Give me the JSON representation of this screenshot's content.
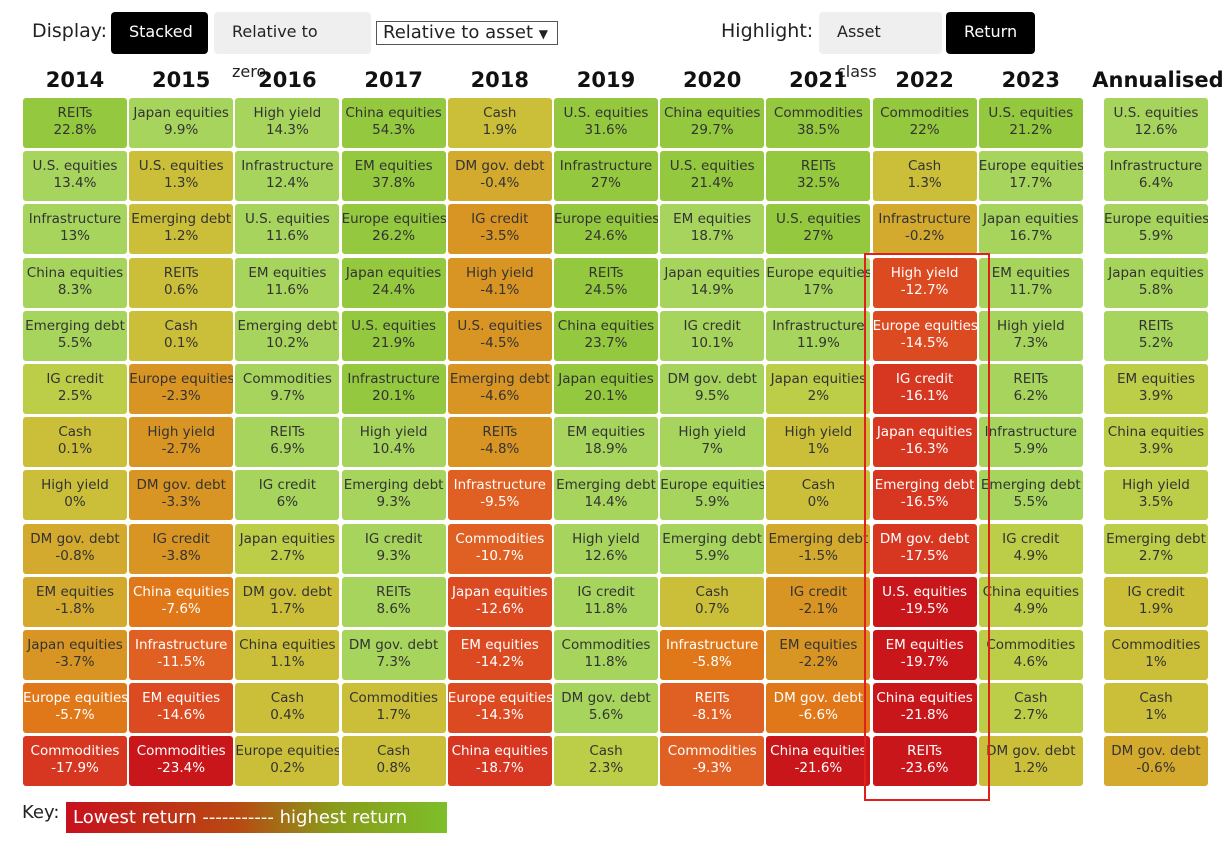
{
  "toolbar": {
    "display_label": "Display:",
    "stacked": "Stacked",
    "relative_zero": "Relative to zero",
    "relative_asset": "Relative to asset",
    "highlight_label": "Highlight:",
    "asset_class": "Asset class",
    "return": "Return"
  },
  "key": {
    "label": "Key:",
    "text": "Lowest return ----------- highest return"
  },
  "columns": [
    {
      "year": "2014",
      "cells": [
        [
          "REITs",
          "22.8%"
        ],
        [
          "U.S. equities",
          "13.4%"
        ],
        [
          "Infrastructure",
          "13%"
        ],
        [
          "China equities",
          "8.3%"
        ],
        [
          "Emerging debt",
          "5.5%"
        ],
        [
          "IG credit",
          "2.5%"
        ],
        [
          "Cash",
          "0.1%"
        ],
        [
          "High yield",
          "0%"
        ],
        [
          "DM gov. debt",
          "-0.8%"
        ],
        [
          "EM equities",
          "-1.8%"
        ],
        [
          "Japan equities",
          "-3.7%"
        ],
        [
          "Europe equities",
          "-5.7%"
        ],
        [
          "Commodities",
          "-17.9%"
        ]
      ]
    },
    {
      "year": "2015",
      "cells": [
        [
          "Japan equities",
          "9.9%"
        ],
        [
          "U.S. equities",
          "1.3%"
        ],
        [
          "Emerging debt",
          "1.2%"
        ],
        [
          "REITs",
          "0.6%"
        ],
        [
          "Cash",
          "0.1%"
        ],
        [
          "Europe equities",
          "-2.3%"
        ],
        [
          "High yield",
          "-2.7%"
        ],
        [
          "DM gov. debt",
          "-3.3%"
        ],
        [
          "IG credit",
          "-3.8%"
        ],
        [
          "China equities",
          "-7.6%"
        ],
        [
          "Infrastructure",
          "-11.5%"
        ],
        [
          "EM equities",
          "-14.6%"
        ],
        [
          "Commodities",
          "-23.4%"
        ]
      ]
    },
    {
      "year": "2016",
      "cells": [
        [
          "High yield",
          "14.3%"
        ],
        [
          "Infrastructure",
          "12.4%"
        ],
        [
          "U.S. equities",
          "11.6%"
        ],
        [
          "EM equities",
          "11.6%"
        ],
        [
          "Emerging debt",
          "10.2%"
        ],
        [
          "Commodities",
          "9.7%"
        ],
        [
          "REITs",
          "6.9%"
        ],
        [
          "IG credit",
          "6%"
        ],
        [
          "Japan equities",
          "2.7%"
        ],
        [
          "DM gov. debt",
          "1.7%"
        ],
        [
          "China equities",
          "1.1%"
        ],
        [
          "Cash",
          "0.4%"
        ],
        [
          "Europe equities",
          "0.2%"
        ]
      ]
    },
    {
      "year": "2017",
      "cells": [
        [
          "China equities",
          "54.3%"
        ],
        [
          "EM equities",
          "37.8%"
        ],
        [
          "Europe equities",
          "26.2%"
        ],
        [
          "Japan equities",
          "24.4%"
        ],
        [
          "U.S. equities",
          "21.9%"
        ],
        [
          "Infrastructure",
          "20.1%"
        ],
        [
          "High yield",
          "10.4%"
        ],
        [
          "Emerging debt",
          "9.3%"
        ],
        [
          "IG credit",
          "9.3%"
        ],
        [
          "REITs",
          "8.6%"
        ],
        [
          "DM gov. debt",
          "7.3%"
        ],
        [
          "Commodities",
          "1.7%"
        ],
        [
          "Cash",
          "0.8%"
        ]
      ]
    },
    {
      "year": "2018",
      "cells": [
        [
          "Cash",
          "1.9%"
        ],
        [
          "DM gov. debt",
          "-0.4%"
        ],
        [
          "IG credit",
          "-3.5%"
        ],
        [
          "High yield",
          "-4.1%"
        ],
        [
          "U.S. equities",
          "-4.5%"
        ],
        [
          "Emerging debt",
          "-4.6%"
        ],
        [
          "REITs",
          "-4.8%"
        ],
        [
          "Infrastructure",
          "-9.5%"
        ],
        [
          "Commodities",
          "-10.7%"
        ],
        [
          "Japan equities",
          "-12.6%"
        ],
        [
          "EM equities",
          "-14.2%"
        ],
        [
          "Europe equities",
          "-14.3%"
        ],
        [
          "China equities",
          "-18.7%"
        ]
      ]
    },
    {
      "year": "2019",
      "cells": [
        [
          "U.S. equities",
          "31.6%"
        ],
        [
          "Infrastructure",
          "27%"
        ],
        [
          "Europe equities",
          "24.6%"
        ],
        [
          "REITs",
          "24.5%"
        ],
        [
          "China equities",
          "23.7%"
        ],
        [
          "Japan equities",
          "20.1%"
        ],
        [
          "EM equities",
          "18.9%"
        ],
        [
          "Emerging debt",
          "14.4%"
        ],
        [
          "High yield",
          "12.6%"
        ],
        [
          "IG credit",
          "11.8%"
        ],
        [
          "Commodities",
          "11.8%"
        ],
        [
          "DM gov. debt",
          "5.6%"
        ],
        [
          "Cash",
          "2.3%"
        ]
      ]
    },
    {
      "year": "2020",
      "cells": [
        [
          "China equities",
          "29.7%"
        ],
        [
          "U.S. equities",
          "21.4%"
        ],
        [
          "EM equities",
          "18.7%"
        ],
        [
          "Japan equities",
          "14.9%"
        ],
        [
          "IG credit",
          "10.1%"
        ],
        [
          "DM gov. debt",
          "9.5%"
        ],
        [
          "High yield",
          "7%"
        ],
        [
          "Europe equities",
          "5.9%"
        ],
        [
          "Emerging debt",
          "5.9%"
        ],
        [
          "Cash",
          "0.7%"
        ],
        [
          "Infrastructure",
          "-5.8%"
        ],
        [
          "REITs",
          "-8.1%"
        ],
        [
          "Commodities",
          "-9.3%"
        ]
      ]
    },
    {
      "year": "2021",
      "cells": [
        [
          "Commodities",
          "38.5%"
        ],
        [
          "REITs",
          "32.5%"
        ],
        [
          "U.S. equities",
          "27%"
        ],
        [
          "Europe equities",
          "17%"
        ],
        [
          "Infrastructure",
          "11.9%"
        ],
        [
          "Japan equities",
          "2%"
        ],
        [
          "High yield",
          "1%"
        ],
        [
          "Cash",
          "0%"
        ],
        [
          "Emerging debt",
          "-1.5%"
        ],
        [
          "IG credit",
          "-2.1%"
        ],
        [
          "EM equities",
          "-2.2%"
        ],
        [
          "DM gov. debt",
          "-6.6%"
        ],
        [
          "China equities",
          "-21.6%"
        ]
      ]
    },
    {
      "year": "2022",
      "cells": [
        [
          "Commodities",
          "22%"
        ],
        [
          "Cash",
          "1.3%"
        ],
        [
          "Infrastructure",
          "-0.2%"
        ],
        [
          "High yield",
          "-12.7%"
        ],
        [
          "Europe equities",
          "-14.5%"
        ],
        [
          "IG credit",
          "-16.1%"
        ],
        [
          "Japan equities",
          "-16.3%"
        ],
        [
          "Emerging debt",
          "-16.5%"
        ],
        [
          "DM gov. debt",
          "-17.5%"
        ],
        [
          "U.S. equities",
          "-19.5%"
        ],
        [
          "EM equities",
          "-19.7%"
        ],
        [
          "China equities",
          "-21.8%"
        ],
        [
          "REITs",
          "-23.6%"
        ]
      ]
    },
    {
      "year": "2023",
      "cells": [
        [
          "U.S. equities",
          "21.2%"
        ],
        [
          "Europe equities",
          "17.7%"
        ],
        [
          "Japan equities",
          "16.7%"
        ],
        [
          "EM equities",
          "11.7%"
        ],
        [
          "High yield",
          "7.3%"
        ],
        [
          "REITs",
          "6.2%"
        ],
        [
          "Infrastructure",
          "5.9%"
        ],
        [
          "Emerging debt",
          "5.5%"
        ],
        [
          "IG credit",
          "4.9%"
        ],
        [
          "China equities",
          "4.9%"
        ],
        [
          "Commodities",
          "4.6%"
        ],
        [
          "Cash",
          "2.7%"
        ],
        [
          "DM gov. debt",
          "1.2%"
        ]
      ]
    },
    {
      "year": "Annualised",
      "cells": [
        [
          "U.S. equities",
          "12.6%"
        ],
        [
          "Infrastructure",
          "6.4%"
        ],
        [
          "Europe equities",
          "5.9%"
        ],
        [
          "Japan equities",
          "5.8%"
        ],
        [
          "REITs",
          "5.2%"
        ],
        [
          "EM equities",
          "3.9%"
        ],
        [
          "China equities",
          "3.9%"
        ],
        [
          "High yield",
          "3.5%"
        ],
        [
          "Emerging debt",
          "2.7%"
        ],
        [
          "IG credit",
          "1.9%"
        ],
        [
          "Commodities",
          "1%"
        ],
        [
          "Cash",
          "1%"
        ],
        [
          "DM gov. debt",
          "-0.6%"
        ]
      ]
    }
  ]
}
